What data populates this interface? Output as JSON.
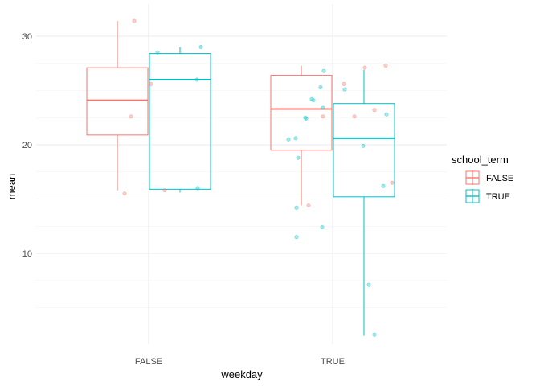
{
  "chart_data": {
    "type": "boxplot",
    "xlabel": "weekday",
    "ylabel": "mean",
    "categories": [
      "FALSE",
      "TRUE"
    ],
    "y_ticks": [
      10,
      20,
      30
    ],
    "ylim": [
      1.5,
      32.5
    ],
    "legend": {
      "title": "school_term",
      "placement": "right",
      "entries": [
        {
          "label": "FALSE",
          "color": "#F8766D"
        },
        {
          "label": "TRUE",
          "color": "#00BFC4"
        }
      ]
    },
    "series": [
      {
        "name": "FALSE",
        "color": "#F8766D",
        "boxes": [
          {
            "category": "FALSE",
            "min": 15.8,
            "q1": 20.9,
            "median": 24.1,
            "q3": 27.1,
            "max": 31.4
          },
          {
            "category": "TRUE",
            "min": 14.4,
            "q1": 19.5,
            "median": 23.3,
            "q3": 26.4,
            "max": 27.3
          }
        ],
        "points": [
          {
            "category": "FALSE",
            "offset": -0.3,
            "y": 15.5
          },
          {
            "category": "FALSE",
            "offset": -0.22,
            "y": 22.6
          },
          {
            "category": "FALSE",
            "offset": -0.18,
            "y": 31.4
          },
          {
            "category": "FALSE",
            "offset": 0.03,
            "y": 25.6
          },
          {
            "category": "FALSE",
            "offset": 0.2,
            "y": 15.8
          },
          {
            "category": "TRUE",
            "offset": -0.3,
            "y": 14.4
          },
          {
            "category": "TRUE",
            "offset": -0.12,
            "y": 22.6
          },
          {
            "category": "TRUE",
            "offset": 0.14,
            "y": 25.6
          },
          {
            "category": "TRUE",
            "offset": 0.27,
            "y": 22.6
          },
          {
            "category": "TRUE",
            "offset": 0.4,
            "y": 27.1
          },
          {
            "category": "TRUE",
            "offset": 0.52,
            "y": 23.2
          },
          {
            "category": "TRUE",
            "offset": 0.66,
            "y": 27.3
          },
          {
            "category": "TRUE",
            "offset": 0.74,
            "y": 16.5
          }
        ]
      },
      {
        "name": "TRUE",
        "color": "#00BFC4",
        "boxes": [
          {
            "category": "FALSE",
            "min": 15.6,
            "q1": 15.9,
            "median": 26.0,
            "q3": 28.4,
            "max": 29.0
          },
          {
            "category": "TRUE",
            "min": 2.4,
            "q1": 15.2,
            "median": 20.6,
            "q3": 23.8,
            "max": 26.9
          }
        ],
        "points": [
          {
            "category": "FALSE",
            "offset": 0.11,
            "y": 28.5
          },
          {
            "category": "FALSE",
            "offset": 0.6,
            "y": 26.0
          },
          {
            "category": "FALSE",
            "offset": 0.61,
            "y": 16.0
          },
          {
            "category": "FALSE",
            "offset": 0.65,
            "y": 29.0
          },
          {
            "category": "TRUE",
            "offset": -0.55,
            "y": 20.5
          },
          {
            "category": "TRUE",
            "offset": -0.45,
            "y": 14.2
          },
          {
            "category": "TRUE",
            "offset": -0.45,
            "y": 11.5
          },
          {
            "category": "TRUE",
            "offset": -0.46,
            "y": 20.6
          },
          {
            "category": "TRUE",
            "offset": -0.43,
            "y": 18.8
          },
          {
            "category": "TRUE",
            "offset": -0.34,
            "y": 22.5
          },
          {
            "category": "TRUE",
            "offset": -0.33,
            "y": 22.4
          },
          {
            "category": "TRUE",
            "offset": -0.26,
            "y": 24.2
          },
          {
            "category": "TRUE",
            "offset": -0.24,
            "y": 24.1
          },
          {
            "category": "TRUE",
            "offset": -0.15,
            "y": 25.3
          },
          {
            "category": "TRUE",
            "offset": -0.13,
            "y": 12.4
          },
          {
            "category": "TRUE",
            "offset": -0.12,
            "y": 23.4
          },
          {
            "category": "TRUE",
            "offset": -0.11,
            "y": 26.8
          },
          {
            "category": "TRUE",
            "offset": 0.15,
            "y": 25.1
          },
          {
            "category": "TRUE",
            "offset": 0.38,
            "y": 19.9
          },
          {
            "category": "TRUE",
            "offset": 0.45,
            "y": 7.1
          },
          {
            "category": "TRUE",
            "offset": 0.52,
            "y": 2.5
          },
          {
            "category": "TRUE",
            "offset": 0.63,
            "y": 16.2
          },
          {
            "category": "TRUE",
            "offset": 0.67,
            "y": 22.8
          }
        ]
      }
    ]
  }
}
